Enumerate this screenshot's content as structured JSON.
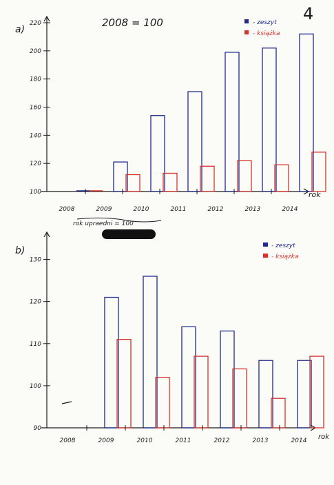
{
  "page_number": "4",
  "colors": {
    "blue": "#1f2a8c",
    "red": "#d8322e",
    "ink": "#1a1a1a"
  },
  "chart_data": [
    {
      "type": "bar",
      "part_label": "a)",
      "title": "2008 = 100",
      "xlabel": "rok",
      "categories": [
        "2008",
        "2009",
        "2010",
        "2011",
        "2012",
        "2013",
        "2014"
      ],
      "ylim": [
        100,
        220
      ],
      "y_ticks": [
        "100",
        "120",
        "140",
        "160",
        "180",
        "200",
        "220"
      ],
      "series": [
        {
          "name": "zeszyt",
          "color": "#1f2a8c",
          "values": [
            100,
            121,
            154,
            171,
            199,
            202,
            212
          ]
        },
        {
          "name": "książka",
          "color": "#d8322e",
          "values": [
            100,
            112,
            113,
            118,
            122,
            119,
            128
          ]
        }
      ],
      "legend": "top-right",
      "grid": false
    },
    {
      "type": "bar",
      "part_label": "b)",
      "title": "rok upraedni = 100",
      "xlabel": "rok",
      "categories": [
        "2008",
        "2009",
        "2010",
        "2011",
        "2012",
        "2013",
        "2014"
      ],
      "ylim": [
        90,
        135
      ],
      "y_ticks": [
        "90",
        "100",
        "110",
        "120",
        "130"
      ],
      "series": [
        {
          "name": "zeszyt",
          "color": "#1f2a8c",
          "values": [
            null,
            121,
            126,
            114,
            113,
            106,
            106
          ]
        },
        {
          "name": "książka",
          "color": "#d8322e",
          "values": [
            null,
            111,
            102,
            107,
            104,
            97,
            107
          ]
        }
      ],
      "legend": "top-right",
      "grid": false
    }
  ]
}
